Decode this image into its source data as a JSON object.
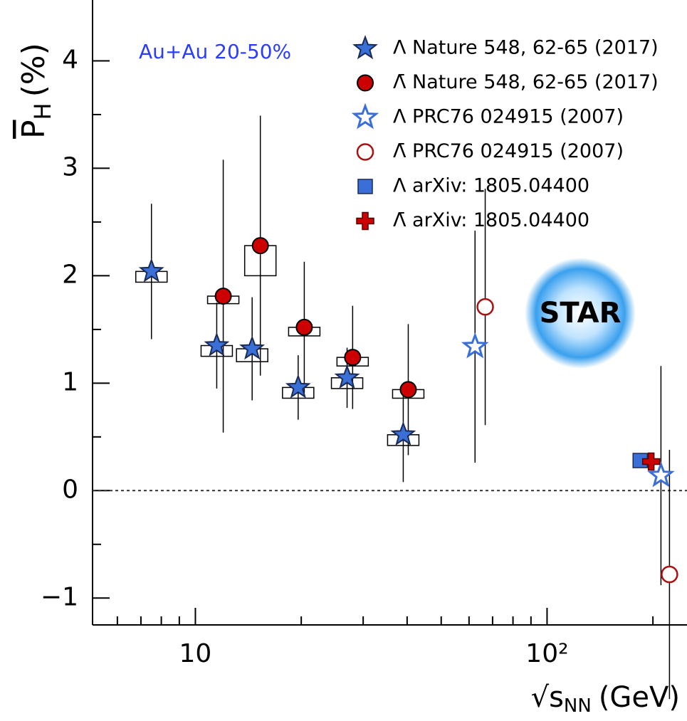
{
  "chart_data": {
    "type": "scatter",
    "annotation": "Au+Au 20-50%",
    "logo": "STAR",
    "ylabel": {
      "main": "P",
      "sub": "H",
      "unit": "(%)"
    },
    "xlabel": {
      "main": "√s",
      "sub": "NN",
      "unit": "(GeV)"
    },
    "xlog": true,
    "xlim": [
      5.1,
      250
    ],
    "ylim": [
      -1.25,
      4.5
    ],
    "xticks": [
      10,
      {
        "value": 100,
        "label": "10²"
      }
    ],
    "xminor_ticks": [
      6,
      7,
      8,
      9,
      20,
      30,
      40,
      50,
      60,
      70,
      80,
      90,
      200
    ],
    "yticks": [
      {
        "value": -1,
        "label": "−1"
      },
      0,
      1,
      2,
      3,
      4
    ],
    "yminor_ticks": [
      -0.5,
      0.5,
      1.5,
      2.5,
      3.5
    ],
    "reference_line": 0,
    "legend": "top-right",
    "series": [
      {
        "name": "Λ Nature 548, 62-65 (2017)",
        "marker": "star",
        "color": "#3a6fd8",
        "x": [
          7.5,
          11.5,
          14.5,
          19.6,
          27,
          39
        ],
        "values": [
          2.04,
          1.35,
          1.32,
          0.96,
          1.05,
          0.52
        ],
        "errors": [
          0.63,
          0.4,
          0.48,
          0.3,
          0.28,
          0.44
        ],
        "sys": [
          0.1,
          0.1,
          0.12,
          0.1,
          0.1,
          0.1
        ]
      },
      {
        "name": "Λ̄ Nature 548, 62-65 (2017)",
        "marker": "circle",
        "color": "#cc0000",
        "x": [
          12,
          15.3,
          20.4,
          28,
          40.3
        ],
        "values": [
          1.81,
          2.28,
          1.52,
          1.24,
          0.94
        ],
        "errors": [
          1.27,
          1.21,
          0.61,
          0.48,
          0.61
        ],
        "sys": [
          0.07,
          0.28,
          0.08,
          0.08,
          0.08
        ]
      },
      {
        "name": "Λ PRC76 024915 (2007)",
        "marker": "open-star",
        "color": "#3a6fd8",
        "x": [
          62.4,
          210.8
        ],
        "values": [
          1.34,
          0.14
        ],
        "errors": [
          1.08,
          1.02
        ]
      },
      {
        "name": "Λ̄ PRC76 024915 (2007)",
        "marker": "open-circle",
        "color": "#aa1111",
        "x": [
          66.7,
          222.9
        ],
        "values": [
          1.71,
          -0.78
        ],
        "errors": [
          1.1,
          1.16
        ]
      },
      {
        "name": "Λ  arXiv: 1805.04400",
        "marker": "square",
        "color": "#3a6fd8",
        "x": [
          184
        ],
        "values": [
          0.28
        ]
      },
      {
        "name": "Λ̄  arXiv: 1805.04400",
        "marker": "cross",
        "color": "#cc0000",
        "x": [
          197.7
        ],
        "values": [
          0.27
        ]
      }
    ]
  }
}
